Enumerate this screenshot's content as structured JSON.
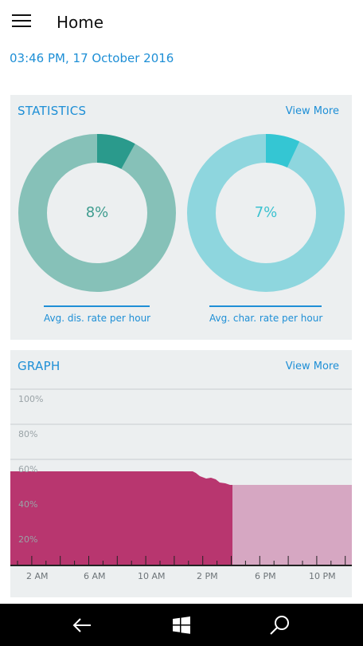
{
  "header": {
    "title": "Home",
    "datetime": "03:46 PM, 17 October 2016"
  },
  "statistics": {
    "title": "STATISTICS",
    "view_more": "View More",
    "discharge": {
      "value": 8,
      "label": "8%",
      "caption": "Avg. dis. rate per hour",
      "color": "#2a9a8c",
      "track": "#86c1b8"
    },
    "charge": {
      "value": 7,
      "label": "7%",
      "caption": "Avg. char. rate per hour",
      "color": "#34c6d3",
      "track": "#8ed6de"
    }
  },
  "graph": {
    "title": "GRAPH",
    "view_more": "View More",
    "y_ticks": [
      "100%",
      "80%",
      "60%",
      "40%",
      "20%"
    ],
    "x_ticks": [
      "2 AM",
      "6 AM",
      "10 AM",
      "2 PM",
      "6 PM",
      "10 PM"
    ]
  },
  "navbar": {
    "back": "back-arrow",
    "home": "windows-logo",
    "search": "search"
  }
}
